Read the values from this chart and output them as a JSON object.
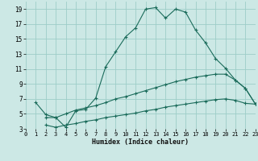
{
  "bg_color": "#cce8e5",
  "grid_color": "#9dcdc8",
  "line_color": "#1a6b5a",
  "xlabel": "Humidex (Indice chaleur)",
  "xlim": [
    0,
    23
  ],
  "ylim": [
    3,
    20
  ],
  "xticks": [
    0,
    1,
    2,
    3,
    4,
    5,
    6,
    7,
    8,
    9,
    10,
    11,
    12,
    13,
    14,
    15,
    16,
    17,
    18,
    19,
    20,
    21,
    22,
    23
  ],
  "yticks": [
    3,
    5,
    7,
    9,
    11,
    13,
    15,
    17,
    19
  ],
  "curve1_x": [
    1,
    2,
    3,
    4,
    5,
    6,
    7,
    8,
    9,
    10,
    11,
    12,
    13,
    14,
    15,
    16,
    17,
    18,
    19,
    20,
    21,
    22,
    23
  ],
  "curve1_y": [
    6.5,
    4.9,
    4.5,
    3.2,
    5.4,
    5.6,
    7.1,
    11.3,
    13.3,
    15.3,
    16.5,
    19.0,
    19.2,
    17.8,
    19.0,
    18.6,
    16.2,
    14.5,
    12.4,
    11.1,
    9.5,
    8.4,
    6.3
  ],
  "curve2_x": [
    2,
    3,
    4,
    5,
    6,
    7,
    8,
    9,
    10,
    11,
    12,
    13,
    14,
    15,
    16,
    17,
    18,
    19,
    20,
    21,
    22,
    23
  ],
  "curve2_y": [
    4.5,
    4.5,
    5.0,
    5.5,
    5.8,
    6.1,
    6.5,
    7.0,
    7.3,
    7.7,
    8.1,
    8.5,
    8.9,
    9.3,
    9.6,
    9.9,
    10.1,
    10.3,
    10.3,
    9.5,
    8.4,
    6.3
  ],
  "curve3_x": [
    2,
    3,
    4,
    5,
    6,
    7,
    8,
    9,
    10,
    11,
    12,
    13,
    14,
    15,
    16,
    17,
    18,
    19,
    20,
    21,
    22,
    23
  ],
  "curve3_y": [
    3.5,
    3.2,
    3.5,
    3.7,
    4.0,
    4.2,
    4.5,
    4.7,
    4.9,
    5.1,
    5.4,
    5.6,
    5.9,
    6.1,
    6.3,
    6.5,
    6.7,
    6.9,
    7.0,
    6.8,
    6.4,
    6.3
  ]
}
